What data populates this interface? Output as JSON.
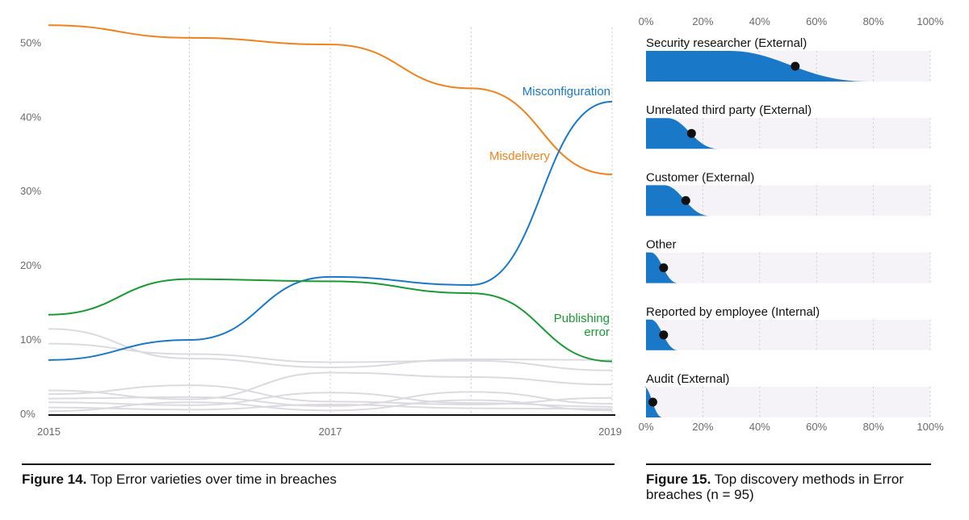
{
  "chart_data": [
    {
      "type": "line",
      "figure_number": "Figure 14.",
      "title": "Top Error varieties over time in breaches",
      "x": [
        2015,
        2016,
        2017,
        2018,
        2019
      ],
      "x_ticks": [
        "2015",
        "2017",
        "2019"
      ],
      "y_ticks": [
        "0%",
        "10%",
        "20%",
        "30%",
        "40%",
        "50%"
      ],
      "ylim": [
        0,
        52
      ],
      "grid": "vertical dotted",
      "highlighted_series": [
        {
          "name": "Misdelivery",
          "label": "Misdelivery",
          "color": "#f0821e",
          "values": [
            52.3,
            50.6,
            49.7,
            43.8,
            32.2
          ]
        },
        {
          "name": "Misconfiguration",
          "label": "Misconfiguration",
          "color": "#1a78c8",
          "values": [
            7.2,
            9.9,
            18.4,
            17.3,
            42.0
          ]
        },
        {
          "name": "Publishing error",
          "label": [
            "Publishing",
            "error"
          ],
          "color": "#1a9a35",
          "values": [
            13.3,
            18.1,
            17.8,
            16.2,
            7.0
          ]
        }
      ],
      "background_color": "#dcdae0",
      "background_series": [
        [
          11.4,
          7.4,
          6.2,
          7.3,
          7.2
        ],
        [
          9.4,
          8.0,
          6.9,
          7.1,
          5.8
        ],
        [
          3.1,
          1.9,
          5.5,
          4.9,
          3.9
        ],
        [
          2.6,
          3.8,
          1.6,
          1.2,
          2.1
        ],
        [
          2.0,
          2.2,
          1.0,
          2.9,
          1.3
        ],
        [
          1.5,
          1.1,
          2.8,
          1.4,
          0.9
        ],
        [
          0.8,
          0.5,
          1.2,
          0.7,
          0.6
        ],
        [
          0.3,
          1.5,
          0.4,
          1.8,
          0.4
        ]
      ]
    },
    {
      "type": "gradient-interval",
      "figure_number": "Figure 15.",
      "title": "Top discovery methods in Error breaches (n = 95)",
      "x_ticks": [
        "0%",
        "20%",
        "40%",
        "60%",
        "80%",
        "100%"
      ],
      "xlim": [
        0,
        100
      ],
      "bar_color": "#1a78c8",
      "track_color": "#f5f3f7",
      "categories": [
        "Security researcher (External)",
        "Unrelated third party (External)",
        "Customer (External)",
        "Other",
        "Reported by employee (Internal)",
        "Audit (External)"
      ],
      "values": [
        52.5,
        16.0,
        14.0,
        6.2,
        6.2,
        2.4
      ]
    }
  ]
}
